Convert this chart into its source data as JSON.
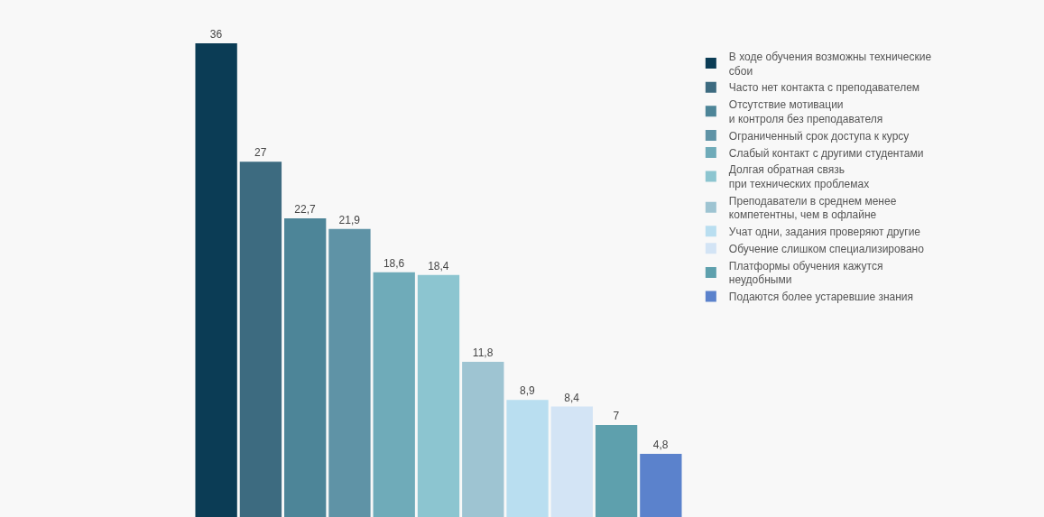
{
  "chart_data": {
    "type": "bar",
    "categories": [
      null
    ],
    "series": [
      {
        "name": "В ходе обучения возможны технические\nсбои",
        "color": "#0b3c55",
        "values": [
          36
        ],
        "value_labels": [
          "36"
        ]
      },
      {
        "name": "Часто нет контакта с преподавателем",
        "color": "#3d6b80",
        "values": [
          27
        ],
        "value_labels": [
          "27"
        ]
      },
      {
        "name": "Отсутствие мотивации\nи контроля без преподавателя",
        "color": "#4d8598",
        "values": [
          22.7
        ],
        "value_labels": [
          "22,7"
        ]
      },
      {
        "name": "Ограниченный срок доступа к курсу",
        "color": "#5f93a6",
        "values": [
          21.9
        ],
        "value_labels": [
          "21,9"
        ]
      },
      {
        "name": "Слабый контакт с другими студентами",
        "color": "#6fabb9",
        "values": [
          18.6
        ],
        "value_labels": [
          "18,6"
        ]
      },
      {
        "name": "Долгая обратная связь\nпри технических проблемах",
        "color": "#8cc5d0",
        "values": [
          18.4
        ],
        "value_labels": [
          "18,4"
        ]
      },
      {
        "name": "Преподаватели в среднем менее\nкомпетентны, чем в офлайне",
        "color": "#9ec4d2",
        "values": [
          11.8
        ],
        "value_labels": [
          "11,8"
        ]
      },
      {
        "name": "Учат одни, задания проверяют другие",
        "color": "#b9def0",
        "values": [
          8.9
        ],
        "value_labels": [
          "8,9"
        ]
      },
      {
        "name": "Обучение слишком специализировано",
        "color": "#d3e4f5",
        "values": [
          8.4
        ],
        "value_labels": [
          "8,4"
        ]
      },
      {
        "name": "Платформы обучения кажутся\nнеудобными",
        "color": "#5ea0ad",
        "values": [
          7
        ],
        "value_labels": [
          "7"
        ]
      },
      {
        "name": "Подаются более устаревшие знания",
        "color": "#5b82cc",
        "values": [
          4.8
        ],
        "value_labels": [
          "4,8"
        ]
      }
    ],
    "legend": "right"
  }
}
